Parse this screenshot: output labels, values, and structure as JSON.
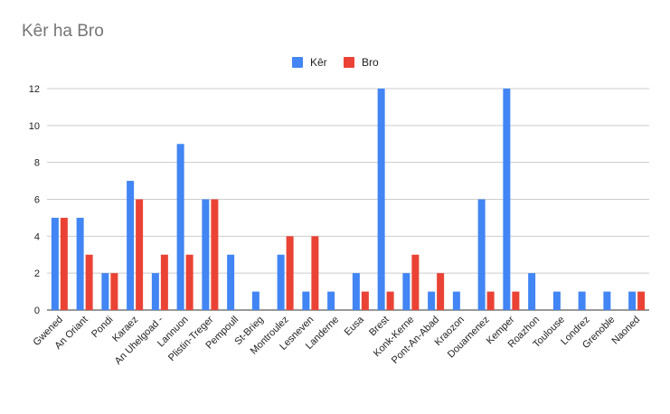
{
  "chart_data": {
    "type": "bar",
    "title": "Kêr ha Bro",
    "xlabel": "",
    "ylabel": "",
    "ylim": [
      0,
      12
    ],
    "yticks": [
      0,
      2,
      4,
      6,
      8,
      10,
      12
    ],
    "grid": true,
    "legend_position": "top",
    "categories": [
      "Gwened",
      "An Oriant",
      "Pondi",
      "Karaez",
      "An Uhelgoad -",
      "Lannuon",
      "Plistin-Treger",
      "Pempoull",
      "St-Brieg",
      "Montroulez",
      "Lesneven",
      "Landerne",
      "Eusa",
      "Brest",
      "Konk-Kerne",
      "Pont-An-Abad",
      "Kraozon",
      "Douarnenez",
      "Kemper",
      "Roazhon",
      "Toulouse",
      "Londrez",
      "Grenoble",
      "Naoned"
    ],
    "series": [
      {
        "name": "Kêr",
        "color": "#4285f4",
        "values": [
          5,
          5,
          2,
          7,
          2,
          9,
          6,
          3,
          1,
          3,
          1,
          1,
          2,
          12,
          2,
          1,
          1,
          6,
          12,
          2,
          1,
          1,
          1,
          1
        ]
      },
      {
        "name": "Bro",
        "color": "#ea4335",
        "values": [
          5,
          3,
          2,
          6,
          3,
          3,
          6,
          0,
          0,
          4,
          4,
          0,
          1,
          1,
          3,
          2,
          0,
          1,
          1,
          0,
          0,
          0,
          0,
          1
        ]
      }
    ]
  }
}
